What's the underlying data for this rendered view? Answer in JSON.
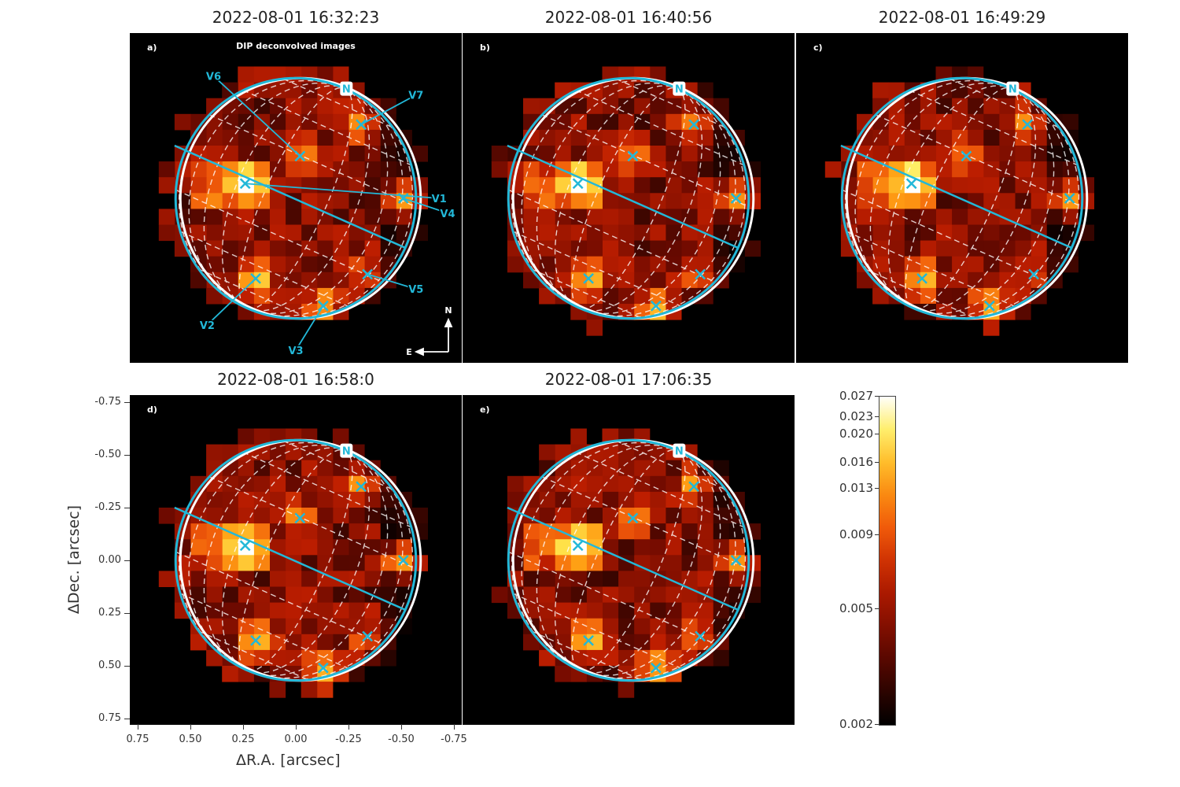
{
  "chart_data": {
    "type": "heatmap",
    "xlabel": "ΔR.A. [arcsec]",
    "ylabel": "ΔDec. [arcsec]",
    "xlim": [
      0.79,
      -0.79
    ],
    "ylim": [
      0.79,
      -0.79
    ],
    "xticks": [
      "0.75",
      "0.50",
      "0.25",
      "0.00",
      "-0.25",
      "-0.50",
      "-0.75"
    ],
    "yticks": [
      "-0.75",
      "-0.50",
      "-0.25",
      "0.00",
      "0.25",
      "0.50",
      "0.75"
    ],
    "grid": false,
    "colorbar": {
      "scale": "log",
      "range": [
        0.002,
        0.027
      ],
      "ticks": [
        "0.027",
        "0.023",
        "0.020",
        "0.016",
        "0.013",
        "0.009",
        "0.005",
        "0.002"
      ],
      "colormap": "hot"
    },
    "annotation": "DIP deconvolved images",
    "north_label": "N",
    "compass": {
      "north": "N",
      "east": "E"
    },
    "hotspots": [
      {
        "name": "V1",
        "ra": 0.24,
        "dec": -0.07,
        "peak": 0.022
      },
      {
        "name": "V2",
        "ra": 0.19,
        "dec": 0.38,
        "peak": 0.014
      },
      {
        "name": "V3",
        "ra": -0.13,
        "dec": 0.51,
        "peak": 0.011
      },
      {
        "name": "V4",
        "ra": -0.51,
        "dec": 0.0,
        "peak": 0.011
      },
      {
        "name": "V5",
        "ra": -0.34,
        "dec": 0.36,
        "peak": 0.006
      },
      {
        "name": "V6",
        "ra": -0.02,
        "dec": -0.2,
        "peak": 0.008
      },
      {
        "name": "V7",
        "ra": -0.31,
        "dec": -0.35,
        "peak": 0.009
      }
    ],
    "panels": [
      {
        "letter": "a)",
        "title": "2022-08-01 16:32:23"
      },
      {
        "letter": "b)",
        "title": "2022-08-01 16:40:56"
      },
      {
        "letter": "c)",
        "title": "2022-08-01 16:49:29"
      },
      {
        "letter": "d)",
        "title": "2022-08-01 16:58:0"
      },
      {
        "letter": "e)",
        "title": "2022-08-01 17:06:35"
      }
    ],
    "colors": {
      "disk_outline": "#22b8d8",
      "grid": "#ffffff",
      "marker": "#22b8d8"
    }
  }
}
